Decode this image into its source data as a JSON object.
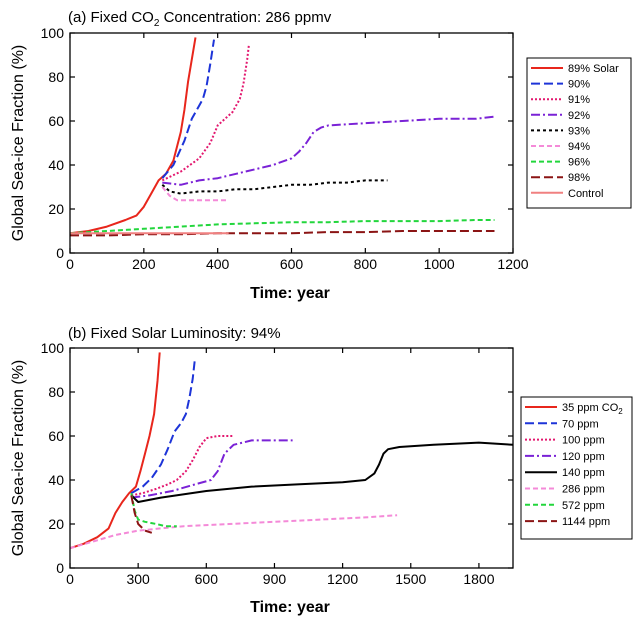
{
  "chart_data": [
    {
      "type": "line",
      "title": "(a) Fixed CO₂ Concentration: 286 ppmv",
      "title_parts": [
        "(a) Fixed CO",
        "2",
        " Concentration: 286 ppmv"
      ],
      "xlabel": "Time: year",
      "ylabel": "Global Sea-ice Fraction (%)",
      "xlim": [
        0,
        1200
      ],
      "ylim": [
        0,
        100
      ],
      "xticks": [
        0,
        200,
        400,
        600,
        800,
        1000,
        1200
      ],
      "yticks": [
        0,
        20,
        40,
        60,
        80,
        100
      ],
      "xtick_labels": [
        "0",
        "200",
        "400",
        "600",
        "800",
        "1000",
        "1200"
      ],
      "ytick_labels": [
        "0",
        "20",
        "40",
        "60",
        "80",
        "100"
      ],
      "grid": false,
      "legend_position": "right",
      "series": [
        {
          "name": "89% Solar",
          "color": "#e8261c",
          "dash": "solid",
          "x": [
            0,
            50,
            100,
            150,
            180,
            200,
            220,
            240,
            260,
            280,
            300,
            310,
            320,
            330,
            340
          ],
          "y": [
            9,
            10,
            12,
            15,
            17,
            21,
            27,
            33,
            36,
            42,
            55,
            65,
            78,
            88,
            98
          ]
        },
        {
          "name": "90%",
          "color": "#1d34d8",
          "dash": "long",
          "x": [
            250,
            280,
            310,
            330,
            350,
            360,
            370,
            380,
            390
          ],
          "y": [
            34,
            40,
            51,
            61,
            67,
            70,
            76,
            86,
            97
          ]
        },
        {
          "name": "91%",
          "color": "#e3186f",
          "dash": "dot",
          "x": [
            250,
            300,
            350,
            380,
            400,
            420,
            440,
            460,
            470,
            480,
            485
          ],
          "y": [
            33,
            37,
            43,
            50,
            58,
            61,
            64,
            70,
            77,
            88,
            95
          ]
        },
        {
          "name": "92%",
          "color": "#7a22d6",
          "dash": "dashdot",
          "x": [
            250,
            300,
            350,
            400,
            450,
            500,
            550,
            600,
            620,
            640,
            660,
            680,
            700,
            800,
            900,
            1000,
            1100,
            1150
          ],
          "y": [
            32,
            31,
            33,
            34,
            36,
            38,
            40,
            43,
            46,
            50,
            55,
            57,
            58,
            59,
            60,
            61,
            61,
            62
          ]
        },
        {
          "name": "93%",
          "color": "#000000",
          "dash": "short",
          "x": [
            250,
            270,
            300,
            350,
            400,
            450,
            500,
            550,
            600,
            650,
            700,
            750,
            800,
            860
          ],
          "y": [
            31,
            28,
            27,
            28,
            28,
            29,
            29,
            30,
            31,
            31,
            32,
            32,
            33,
            33
          ]
        },
        {
          "name": "94%",
          "color": "#f48ad8",
          "dash": "medium",
          "x": [
            250,
            270,
            290,
            320,
            360,
            400,
            430
          ],
          "y": [
            30,
            26,
            24,
            24,
            24,
            24,
            24
          ]
        },
        {
          "name": "96%",
          "color": "#22d63c",
          "dash": "medium",
          "x": [
            0,
            100,
            200,
            300,
            400,
            500,
            600,
            700,
            800,
            900,
            1000,
            1100,
            1150
          ],
          "y": [
            9,
            10,
            11,
            12,
            13,
            13.5,
            14,
            14,
            14.5,
            14.5,
            14.5,
            15,
            15
          ]
        },
        {
          "name": "98%",
          "color": "#8b1414",
          "dash": "long",
          "x": [
            0,
            100,
            200,
            300,
            400,
            500,
            600,
            700,
            800,
            900,
            1000,
            1100,
            1150
          ],
          "y": [
            8,
            8,
            8.5,
            8.5,
            9,
            9,
            9,
            9.5,
            9.5,
            10,
            10,
            10,
            10
          ]
        },
        {
          "name": "Control",
          "color": "#f08080",
          "dash": "solid",
          "x": [
            0,
            100,
            200,
            300,
            400,
            430
          ],
          "y": [
            9,
            9,
            9,
            9,
            9,
            9
          ]
        }
      ]
    },
    {
      "type": "line",
      "title": "(b) Fixed Solar Luminosity: 94%",
      "title_parts": [
        "(b) Fixed Solar Luminosity: 94%"
      ],
      "xlabel": "Time: year",
      "ylabel": "Global Sea-ice Fraction (%)",
      "xlim": [
        0,
        1950
      ],
      "ylim": [
        0,
        100
      ],
      "xticks": [
        0,
        300,
        600,
        900,
        1200,
        1500,
        1800
      ],
      "yticks": [
        0,
        20,
        40,
        60,
        80,
        100
      ],
      "xtick_labels": [
        "0",
        "300",
        "600",
        "900",
        "1200",
        "1500",
        "1800"
      ],
      "ytick_labels": [
        "0",
        "20",
        "40",
        "60",
        "80",
        "100"
      ],
      "grid": false,
      "legend_position": "right",
      "series": [
        {
          "name": "35 ppm CO₂",
          "color": "#e8261c",
          "dash": "solid",
          "x": [
            0,
            60,
            120,
            170,
            200,
            230,
            260,
            290,
            310,
            330,
            350,
            370,
            385,
            395
          ],
          "y": [
            9,
            11,
            14,
            18,
            25,
            30,
            34,
            37,
            44,
            52,
            60,
            70,
            85,
            98
          ]
        },
        {
          "name": "70 ppm",
          "color": "#1d34d8",
          "dash": "long",
          "x": [
            270,
            320,
            360,
            400,
            430,
            460,
            490,
            510,
            525,
            540,
            550
          ],
          "y": [
            34,
            37,
            41,
            47,
            54,
            62,
            66,
            70,
            77,
            86,
            95
          ]
        },
        {
          "name": "100 ppm",
          "color": "#e3186f",
          "dash": "dot",
          "x": [
            270,
            320,
            380,
            430,
            470,
            510,
            540,
            570,
            600,
            650,
            700,
            720
          ],
          "y": [
            33,
            34,
            36,
            38,
            40,
            44,
            49,
            55,
            59,
            60,
            60,
            60
          ]
        },
        {
          "name": "120 ppm",
          "color": "#7a22d6",
          "dash": "dashdot",
          "x": [
            270,
            350,
            450,
            550,
            620,
            650,
            680,
            720,
            800,
            900,
            980
          ],
          "y": [
            32,
            33,
            35,
            38,
            40,
            44,
            52,
            56,
            58,
            58,
            58
          ]
        },
        {
          "name": "140 ppm",
          "color": "#000000",
          "dash": "solid",
          "x": [
            270,
            300,
            400,
            600,
            800,
            1000,
            1200,
            1300,
            1340,
            1360,
            1380,
            1400,
            1450,
            1600,
            1800,
            1950
          ],
          "y": [
            33,
            30,
            32,
            35,
            37,
            38,
            39,
            40,
            43,
            47,
            52,
            54,
            55,
            56,
            57,
            56
          ]
        },
        {
          "name": "286 ppm",
          "color": "#f48ad8",
          "dash": "medium",
          "x": [
            0,
            100,
            200,
            300,
            500,
            700,
            900,
            1100,
            1300,
            1440
          ],
          "y": [
            9,
            12,
            15,
            17,
            19,
            20,
            21,
            22,
            23,
            24
          ]
        },
        {
          "name": "572 ppm",
          "color": "#22d63c",
          "dash": "medium",
          "x": [
            270,
            285,
            300,
            330,
            380,
            420,
            470
          ],
          "y": [
            34,
            26,
            22,
            21,
            20,
            19,
            19
          ]
        },
        {
          "name": "1144 ppm",
          "color": "#8b1414",
          "dash": "long",
          "x": [
            270,
            285,
            300,
            330,
            360
          ],
          "y": [
            33,
            25,
            20,
            17,
            16
          ]
        }
      ]
    }
  ]
}
